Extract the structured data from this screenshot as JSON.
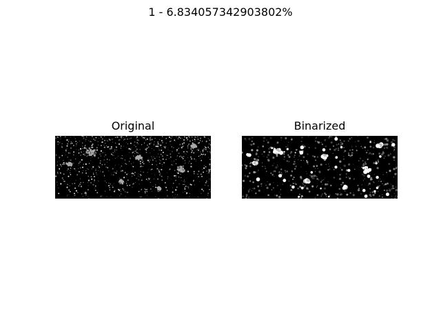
{
  "figure": {
    "suptitle": "1 - 6.834057342903802%",
    "panels": [
      {
        "title": "Original",
        "image": "grayscale-speckle-image",
        "tone": "#a9a9a9"
      },
      {
        "title": "Binarized",
        "image": "binarized-speckle-image",
        "tone": "#ffffff"
      }
    ],
    "colors": {
      "background": "#ffffff",
      "image_background": "#000000"
    }
  }
}
